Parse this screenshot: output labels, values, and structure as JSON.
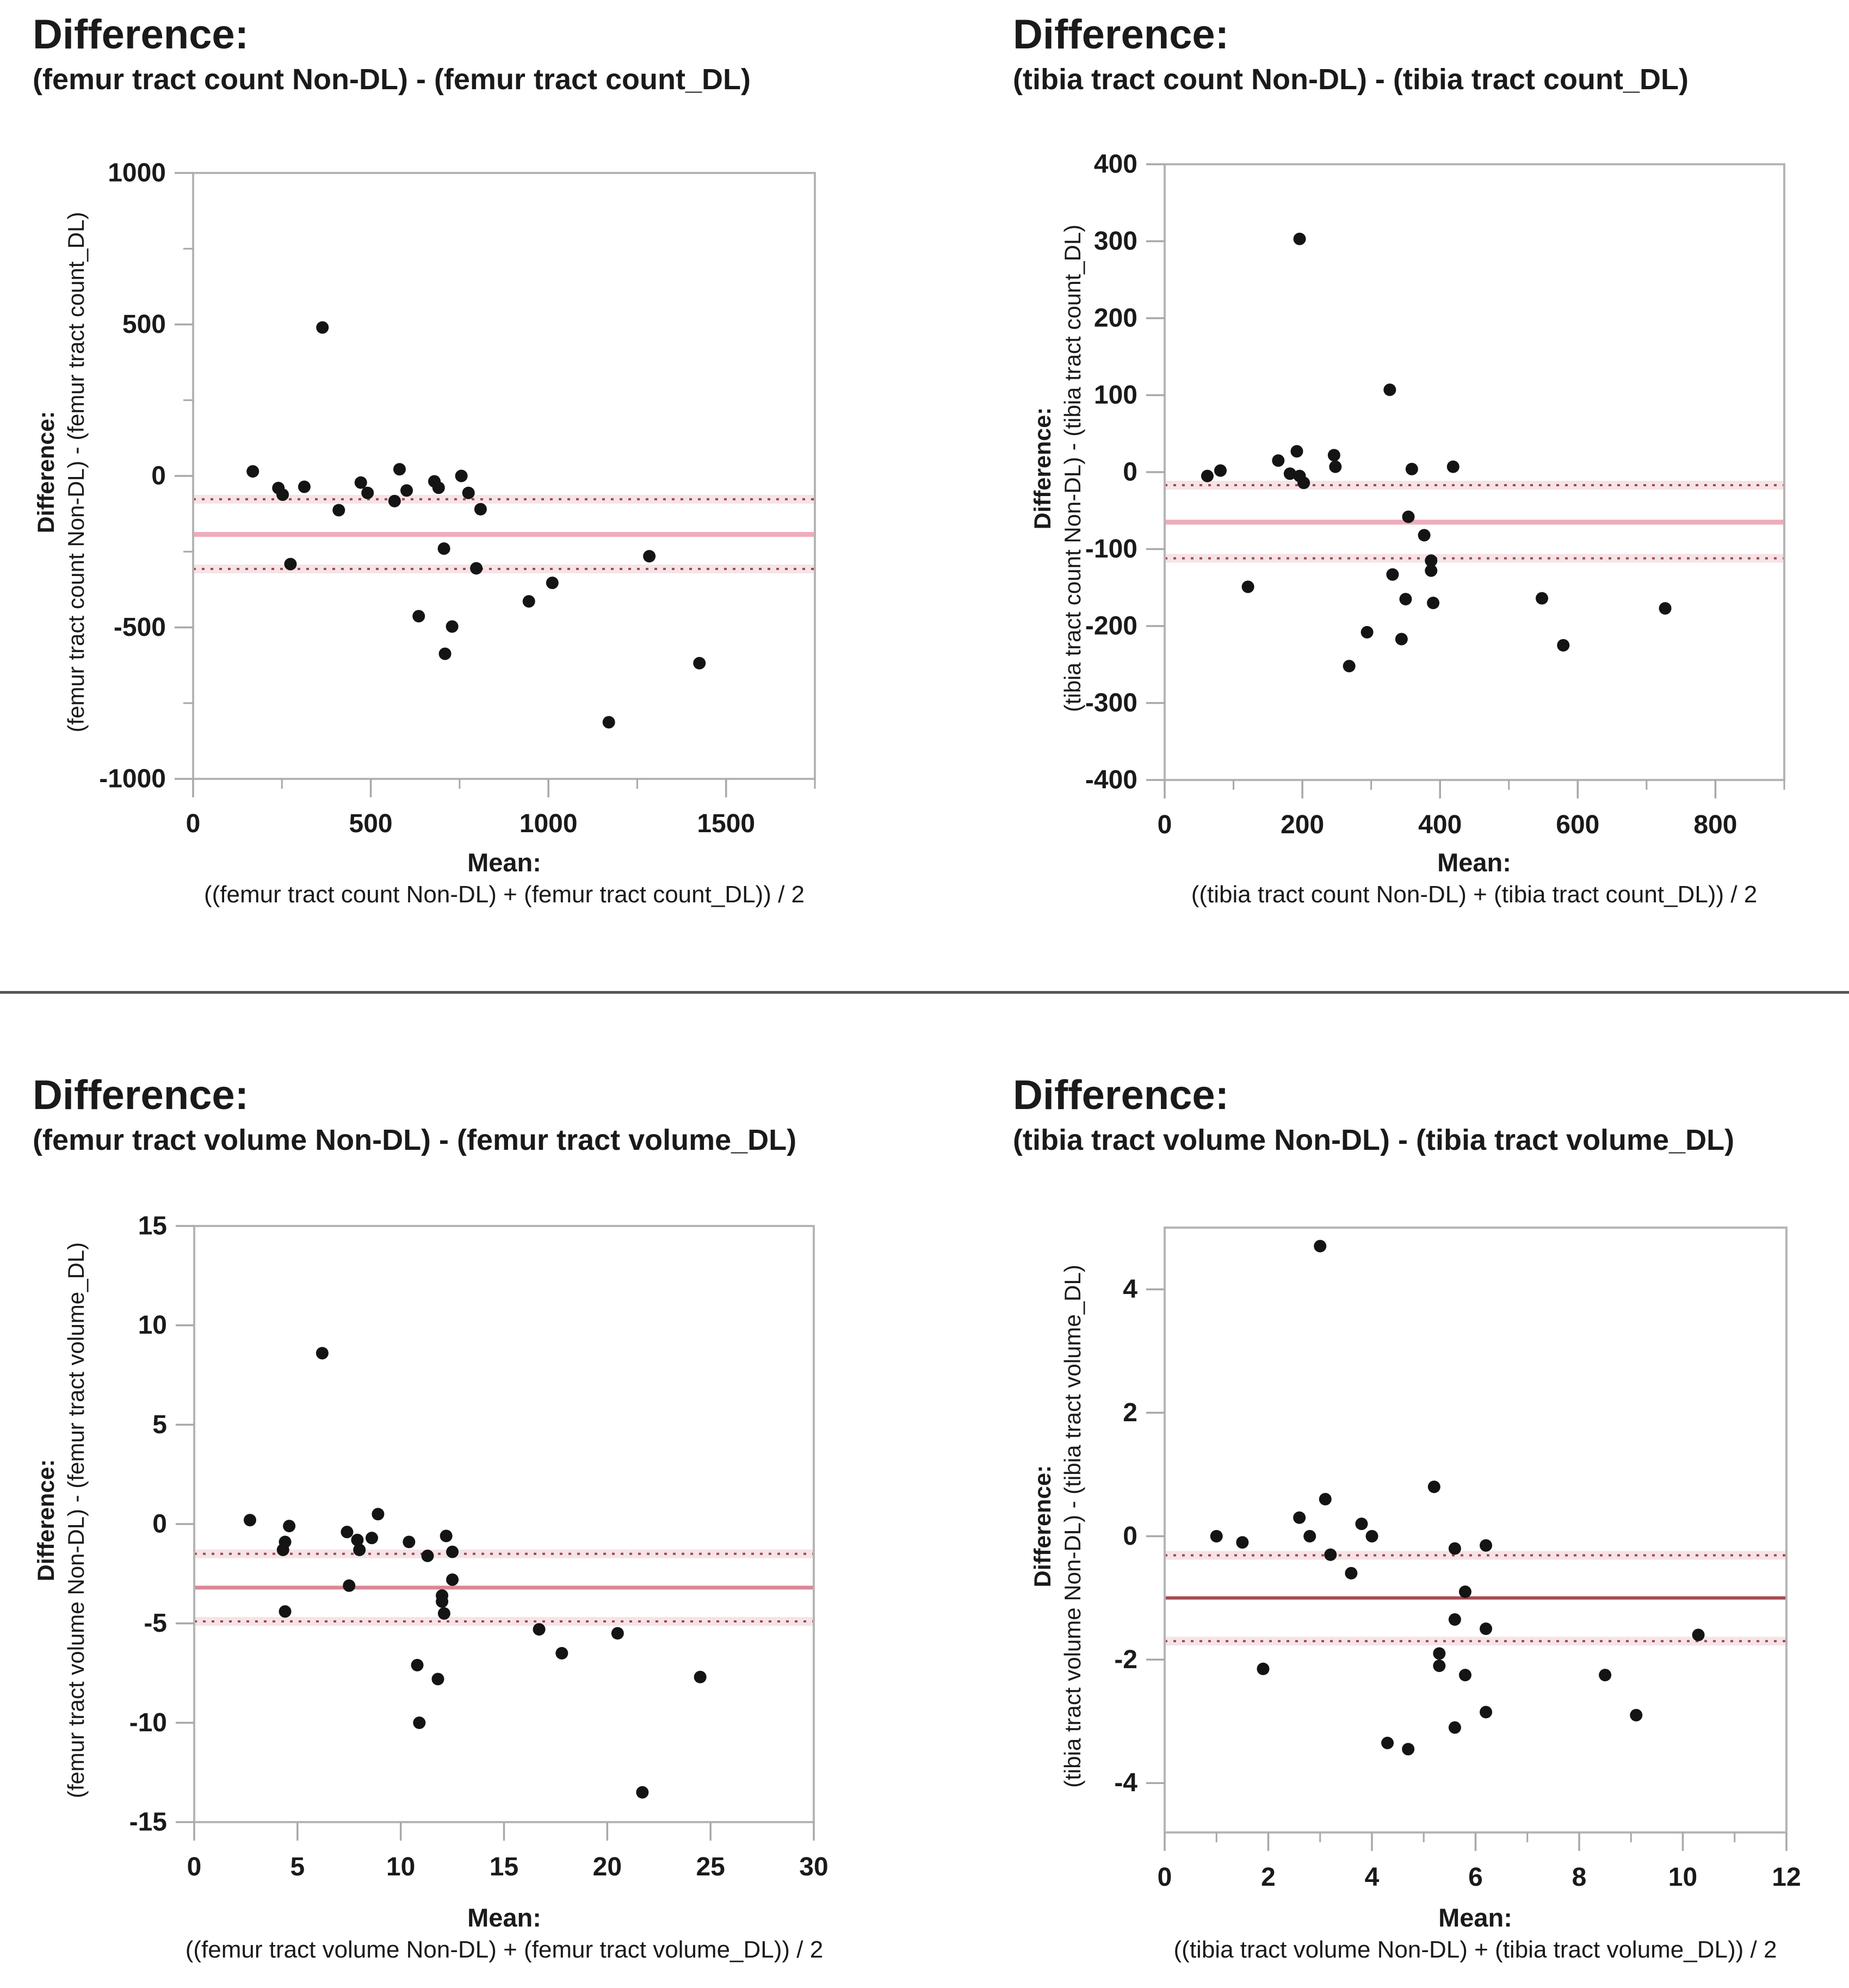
{
  "page": {
    "background": "#ffffff",
    "separator_color": "#575757",
    "point_color": "#141414",
    "frame_color": "#b5b5b5",
    "tick_color": "#a8a8a8",
    "limit_line_color": "#9a4a53",
    "limit_band_color": "#f6e3e6"
  },
  "chart_data": [
    {
      "id": "femur-tract-count",
      "type": "scatter",
      "title": "Difference:",
      "subtitle": "(femur tract count Non-DL) - (femur tract count_DL)",
      "ylabel_title": "Difference:",
      "ylabel_formula": "(femur tract count Non-DL) - (femur tract count_DL)",
      "xlabel_title": "Mean:",
      "xlabel_formula": "((femur tract count Non-DL) + (femur tract count_DL)) / 2",
      "xlim": [
        0,
        1750
      ],
      "ylim": [
        -1000,
        1000
      ],
      "x_ticks": [
        0,
        500,
        1000,
        1500
      ],
      "x_minor_ticks": [
        250,
        750,
        1250,
        1750
      ],
      "y_ticks": [
        1000,
        500,
        0,
        -500,
        -1000
      ],
      "y_minor_ticks": [
        750,
        250,
        -250,
        -750
      ],
      "mean_line": -193,
      "upper_limit": -77,
      "lower_limit": -307,
      "mean_line_color": "#efacbb",
      "mean_line_width": 9,
      "points": [
        [
          364,
          490
        ],
        [
          168,
          15
        ],
        [
          240,
          -40
        ],
        [
          252,
          -62
        ],
        [
          313,
          -36
        ],
        [
          274,
          -291
        ],
        [
          410,
          -113
        ],
        [
          472,
          -22
        ],
        [
          491,
          -56
        ],
        [
          567,
          -83
        ],
        [
          581,
          22
        ],
        [
          601,
          -48
        ],
        [
          679,
          -18
        ],
        [
          691,
          -39
        ],
        [
          755,
          0
        ],
        [
          775,
          -56
        ],
        [
          809,
          -110
        ],
        [
          706,
          -240
        ],
        [
          797,
          -305
        ],
        [
          635,
          -463
        ],
        [
          729,
          -497
        ],
        [
          709,
          -587
        ],
        [
          945,
          -414
        ],
        [
          1011,
          -353
        ],
        [
          1170,
          -813
        ],
        [
          1284,
          -265
        ],
        [
          1425,
          -618
        ]
      ]
    },
    {
      "id": "tibia-tract-count",
      "type": "scatter",
      "title": "Difference:",
      "subtitle": "(tibia tract count Non-DL) - (tibia tract count_DL)",
      "ylabel_title": "Difference:",
      "ylabel_formula": "(tibia tract count Non-DL) - (tibia tract count_DL)",
      "xlabel_title": "Mean:",
      "xlabel_formula": "((tibia tract count Non-DL) + (tibia tract count_DL)) / 2",
      "xlim": [
        0,
        900
      ],
      "ylim": [
        -400,
        400
      ],
      "x_ticks": [
        0,
        200,
        400,
        600,
        800
      ],
      "x_minor_ticks": [
        100,
        300,
        500,
        700,
        900
      ],
      "y_ticks": [
        400,
        300,
        200,
        100,
        0,
        -100,
        -200,
        -300,
        -400
      ],
      "y_minor_ticks": [],
      "mean_line": -65,
      "upper_limit": -17,
      "lower_limit": -112,
      "mean_line_color": "#efacbb",
      "mean_line_width": 9,
      "points": [
        [
          196,
          303
        ],
        [
          327,
          107
        ],
        [
          62,
          -5
        ],
        [
          81,
          2
        ],
        [
          165,
          15
        ],
        [
          192,
          27
        ],
        [
          182,
          -2
        ],
        [
          196,
          -5
        ],
        [
          202,
          -14
        ],
        [
          246,
          22
        ],
        [
          248,
          7
        ],
        [
          359,
          4
        ],
        [
          419,
          7
        ],
        [
          354,
          -58
        ],
        [
          377,
          -82
        ],
        [
          387,
          -115
        ],
        [
          387,
          -128
        ],
        [
          331,
          -133
        ],
        [
          350,
          -165
        ],
        [
          390,
          -170
        ],
        [
          121,
          -149
        ],
        [
          294,
          -208
        ],
        [
          344,
          -217
        ],
        [
          268,
          -252
        ],
        [
          548,
          -164
        ],
        [
          579,
          -225
        ],
        [
          727,
          -177
        ]
      ]
    },
    {
      "id": "femur-tract-volume",
      "type": "scatter",
      "title": "Difference:",
      "subtitle": "(femur tract volume Non-DL) - (femur tract volume_DL)",
      "ylabel_title": "Difference:",
      "ylabel_formula": "(femur tract volume Non-DL) - (femur tract volume_DL)",
      "xlabel_title": "Mean:",
      "xlabel_formula": "((femur tract volume Non-DL) + (femur tract volume_DL)) / 2",
      "xlim": [
        0,
        30
      ],
      "ylim": [
        -15,
        15
      ],
      "x_ticks": [
        0,
        5,
        10,
        15,
        20,
        25,
        30
      ],
      "x_minor_ticks": [],
      "y_ticks": [
        15,
        10,
        5,
        0,
        -5,
        -10,
        -15
      ],
      "y_minor_ticks": [],
      "mean_line": -3.2,
      "upper_limit": -1.5,
      "lower_limit": -4.9,
      "mean_line_color": "#d98795",
      "mean_line_width": 7,
      "points": [
        [
          6.2,
          8.6
        ],
        [
          2.7,
          0.2
        ],
        [
          4.6,
          -0.1
        ],
        [
          4.4,
          -0.9
        ],
        [
          4.3,
          -1.3
        ],
        [
          4.4,
          -4.4
        ],
        [
          7.4,
          -0.4
        ],
        [
          7.5,
          -3.1
        ],
        [
          7.9,
          -0.8
        ],
        [
          8.0,
          -1.3
        ],
        [
          8.6,
          -0.7
        ],
        [
          8.9,
          0.5
        ],
        [
          10.4,
          -0.9
        ],
        [
          10.8,
          -7.1
        ],
        [
          10.9,
          -10.0
        ],
        [
          11.3,
          -1.6
        ],
        [
          11.8,
          -7.8
        ],
        [
          12.0,
          -3.6
        ],
        [
          12.0,
          -3.9
        ],
        [
          12.1,
          -4.5
        ],
        [
          12.2,
          -0.6
        ],
        [
          12.5,
          -1.4
        ],
        [
          12.5,
          -2.8
        ],
        [
          16.7,
          -5.3
        ],
        [
          17.8,
          -6.5
        ],
        [
          20.5,
          -5.5
        ],
        [
          21.7,
          -13.5
        ],
        [
          24.5,
          -7.7
        ]
      ]
    },
    {
      "id": "tibia-tract-volume",
      "type": "scatter",
      "title": "Difference:",
      "subtitle": "(tibia tract volume Non-DL) - (tibia tract volume_DL)",
      "ylabel_title": "Difference:",
      "ylabel_formula": "(tibia tract volume Non-DL) - (tibia tract volume_DL)",
      "xlabel_title": "Mean:",
      "xlabel_formula": "((tibia tract volume Non-DL) + (tibia tract volume_DL)) / 2",
      "xlim": [
        0,
        12
      ],
      "ylim": [
        -4.8,
        5.0
      ],
      "x_ticks": [
        0,
        2,
        4,
        6,
        8,
        10,
        12
      ],
      "x_minor_ticks": [
        1,
        3,
        5,
        7,
        9,
        11
      ],
      "y_ticks": [
        4,
        2,
        0,
        -2,
        -4
      ],
      "y_minor_ticks": [],
      "mean_line": -1.0,
      "upper_limit": -0.31,
      "lower_limit": -1.7,
      "mean_line_color": "#a64c56",
      "mean_line_width": 6,
      "points": [
        [
          3.0,
          4.7
        ],
        [
          1.0,
          0.0
        ],
        [
          1.5,
          -0.1
        ],
        [
          2.6,
          0.3
        ],
        [
          2.8,
          0.0
        ],
        [
          3.1,
          0.6
        ],
        [
          3.2,
          -0.3
        ],
        [
          3.6,
          -0.6
        ],
        [
          3.8,
          0.2
        ],
        [
          4.0,
          0.0
        ],
        [
          5.2,
          0.8
        ],
        [
          5.6,
          -0.2
        ],
        [
          6.2,
          -0.15
        ],
        [
          5.8,
          -0.9
        ],
        [
          5.6,
          -1.35
        ],
        [
          6.2,
          -1.5
        ],
        [
          5.3,
          -1.9
        ],
        [
          5.3,
          -2.1
        ],
        [
          5.8,
          -2.25
        ],
        [
          1.9,
          -2.15
        ],
        [
          6.2,
          -2.85
        ],
        [
          5.6,
          -3.1
        ],
        [
          4.3,
          -3.35
        ],
        [
          4.7,
          -3.45
        ],
        [
          8.5,
          -2.25
        ],
        [
          9.1,
          -2.9
        ],
        [
          10.3,
          -1.6
        ]
      ]
    }
  ]
}
